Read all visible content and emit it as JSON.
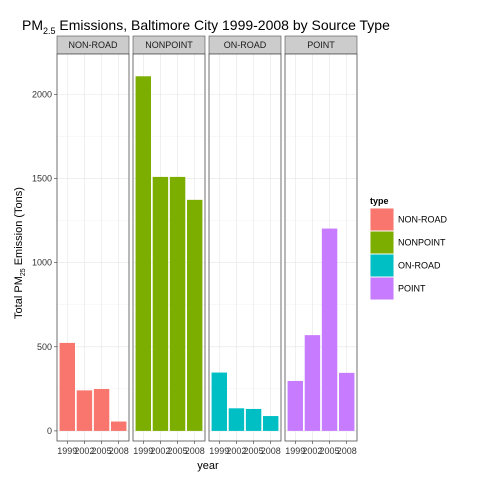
{
  "chart_data": {
    "type": "bar",
    "title_main": "PM",
    "title_sub": "2.5",
    "title_rest": " Emissions, Baltimore City 1999-2008 by Source Type",
    "xlabel": "year",
    "ylabel_main": "Total PM",
    "ylabel_sub": "25",
    "ylabel_rest": " Emission (Tons)",
    "ylim": [
      -60,
      2240
    ],
    "yticks": [
      0,
      500,
      1000,
      1500,
      2000
    ],
    "ytick_labels": [
      "0",
      "500",
      "1000",
      "1500",
      "2000"
    ],
    "categories": [
      "1999",
      "2002",
      "2005",
      "2008"
    ],
    "facets": [
      {
        "label": "NON-ROAD",
        "color": "#F8766D",
        "values": [
          522.94,
          240.85,
          248.93,
          55.82
        ]
      },
      {
        "label": "NONPOINT",
        "color": "#7CAE00",
        "values": [
          2107.63,
          1509.5,
          1509.5,
          1373.21
        ]
      },
      {
        "label": "ON-ROAD",
        "color": "#00BFC4",
        "values": [
          346.82,
          134.31,
          130.43,
          88.28
        ]
      },
      {
        "label": "POINT",
        "color": "#C77CFF",
        "values": [
          296.8,
          569.26,
          1202.49,
          344.98
        ]
      }
    ],
    "legend": {
      "title": "type",
      "placement": "right",
      "entries": [
        "NON-ROAD",
        "NONPOINT",
        "ON-ROAD",
        "POINT"
      ]
    },
    "grid": true
  }
}
